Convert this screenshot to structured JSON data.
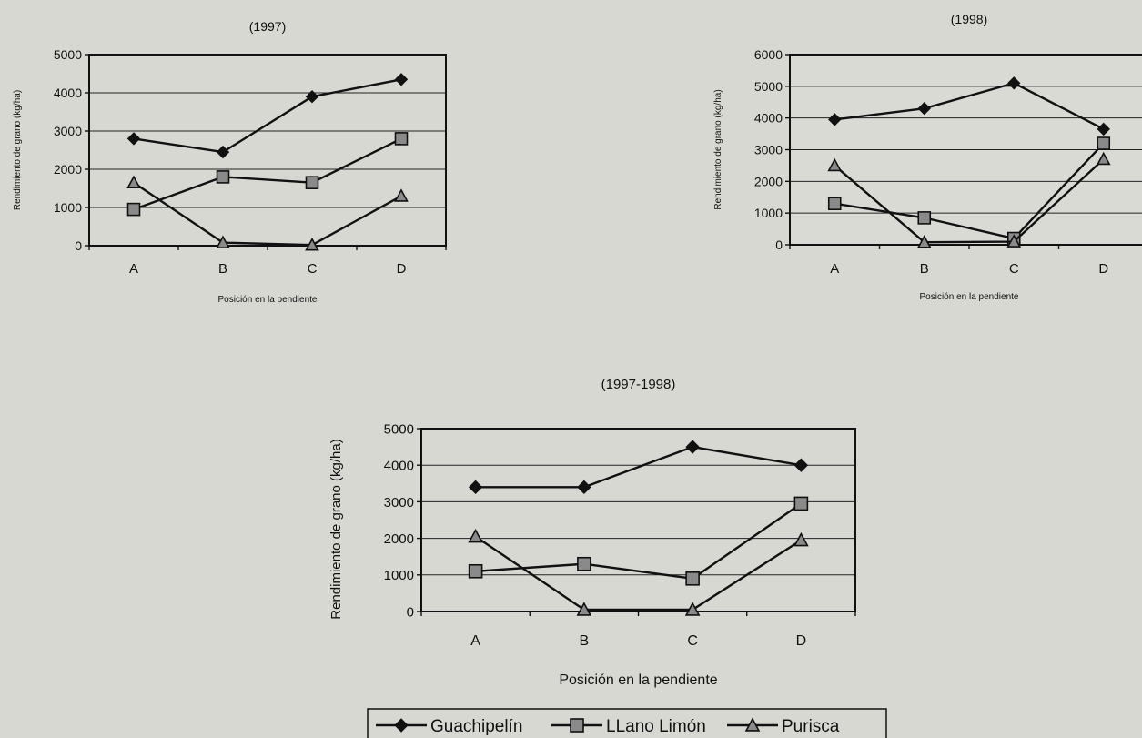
{
  "chart_data": [
    {
      "type": "line",
      "title": "(1997)",
      "xlabel": "Posición en la pendiente",
      "ylabel": "Rendimiento de grano  (kg/ha)",
      "categories": [
        "A",
        "B",
        "C",
        "D"
      ],
      "ylim": [
        0,
        5000
      ],
      "yticks": [
        0,
        1000,
        2000,
        3000,
        4000,
        5000
      ],
      "grid": true,
      "series": [
        {
          "name": "Guachipelín",
          "marker": "diamond",
          "values": [
            2800,
            2450,
            3900,
            4350
          ]
        },
        {
          "name": "LLano Limón",
          "marker": "square",
          "values": [
            950,
            1800,
            1650,
            2800
          ]
        },
        {
          "name": "Purisca",
          "marker": "triangle",
          "values": [
            1650,
            80,
            20,
            1300
          ]
        }
      ]
    },
    {
      "type": "line",
      "title": "(1998)",
      "xlabel": "Posición en la pendiente",
      "ylabel": "Rendimiento de grano  (kg/ha)",
      "categories": [
        "A",
        "B",
        "C",
        "D"
      ],
      "ylim": [
        0,
        6000
      ],
      "yticks": [
        0,
        1000,
        2000,
        3000,
        4000,
        5000,
        6000
      ],
      "grid": true,
      "series": [
        {
          "name": "Guachipelín",
          "marker": "diamond",
          "values": [
            3950,
            4300,
            5100,
            3650
          ]
        },
        {
          "name": "LLano Limón",
          "marker": "square",
          "values": [
            1300,
            850,
            200,
            3200
          ]
        },
        {
          "name": "Purisca",
          "marker": "triangle",
          "values": [
            2500,
            80,
            100,
            2700
          ]
        }
      ]
    },
    {
      "type": "line",
      "title": "(1997-1998)",
      "xlabel": "Posición en la pendiente",
      "ylabel": "Rendimiento de grano  (kg/ha)",
      "categories": [
        "A",
        "B",
        "C",
        "D"
      ],
      "ylim": [
        0,
        5000
      ],
      "yticks": [
        0,
        1000,
        2000,
        3000,
        4000,
        5000
      ],
      "grid": true,
      "series": [
        {
          "name": "Guachipelín",
          "marker": "diamond",
          "values": [
            3400,
            3400,
            4500,
            4000
          ]
        },
        {
          "name": "LLano Limón",
          "marker": "square",
          "values": [
            1100,
            1300,
            900,
            2950
          ]
        },
        {
          "name": "Purisca",
          "marker": "triangle",
          "values": [
            2050,
            50,
            50,
            1950
          ]
        }
      ]
    }
  ],
  "legend": {
    "placement": "bottom-center",
    "items": [
      {
        "label": "Guachipelín",
        "marker": "diamond"
      },
      {
        "label": "LLano Limón",
        "marker": "square"
      },
      {
        "label": "Purisca",
        "marker": "triangle"
      }
    ]
  }
}
